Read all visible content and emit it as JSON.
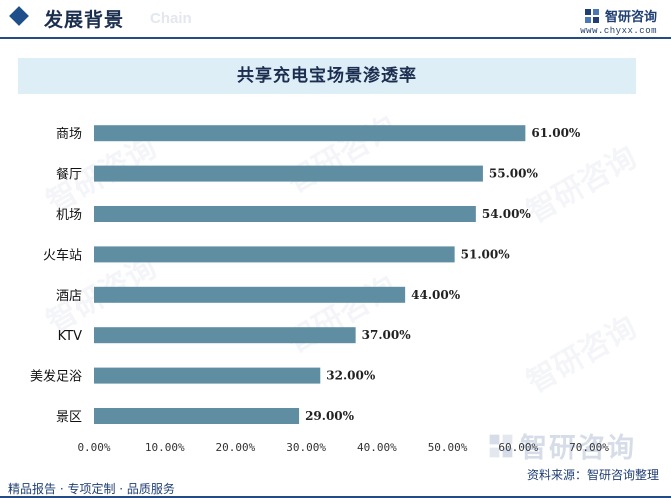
{
  "header": {
    "title": "发展背景",
    "subtitle_en": "Chain",
    "brand_name": "智研咨询",
    "brand_url": "www.chyxx.com"
  },
  "footer": {
    "services": "精品报告 · 专项定制 · 品质服务",
    "source": "资料来源：智研咨询整理"
  },
  "watermark_text": "智研咨询",
  "colors": {
    "bar": "#5f8ea3",
    "header_line": "#244b83",
    "title_box": "#deeef7"
  },
  "chart_data": {
    "type": "bar",
    "orientation": "horizontal",
    "title": "共享充电宝场景渗透率",
    "categories": [
      "商场",
      "餐厅",
      "机场",
      "火车站",
      "酒店",
      "KTV",
      "美发足浴",
      "景区"
    ],
    "values": [
      61.0,
      55.0,
      54.0,
      51.0,
      44.0,
      37.0,
      32.0,
      29.0
    ],
    "value_labels": [
      "61.00%",
      "55.00%",
      "54.00%",
      "51.00%",
      "44.00%",
      "37.00%",
      "32.00%",
      "29.00%"
    ],
    "xlim": [
      0,
      70
    ],
    "xticks": [
      0,
      10,
      20,
      30,
      40,
      50,
      60,
      70
    ],
    "xtick_labels": [
      "0.00%",
      "10.00%",
      "20.00%",
      "30.00%",
      "40.00%",
      "50.00%",
      "60.00%",
      "70.00%"
    ],
    "grid": false,
    "legend": "none"
  }
}
